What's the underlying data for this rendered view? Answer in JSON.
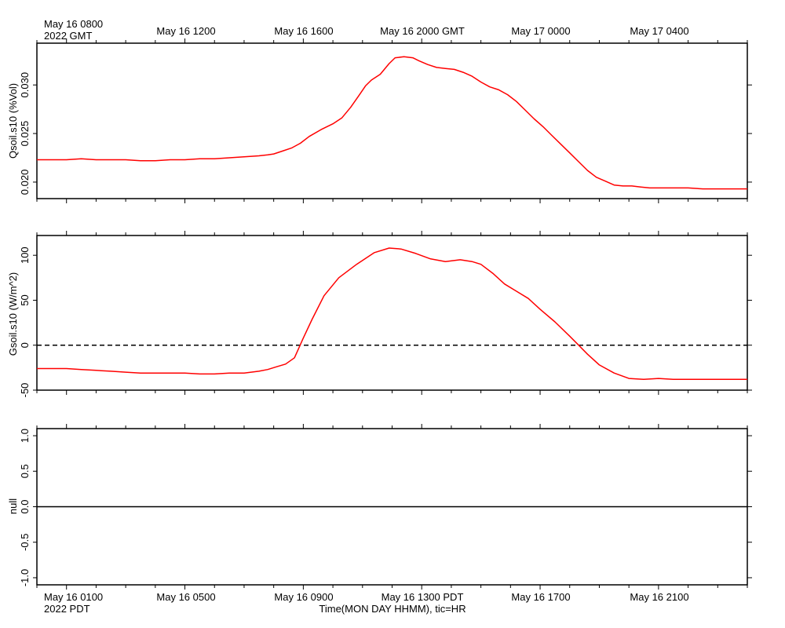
{
  "top_axis": {
    "first_label_line1": "May 16 0800",
    "first_label_line2": "2022 GMT",
    "labels": [
      "May 16 1200",
      "May 16 1600",
      "May 16 2000 GMT",
      "May 17 0000",
      "May 17 0400"
    ]
  },
  "bottom_axis": {
    "first_label_line1": "May 16 0100",
    "first_label_line2": "2022 PDT",
    "labels": [
      "May 16 0500",
      "May 16 0900",
      "May 16 1300 PDT",
      "May 16 1700",
      "May 16 2100"
    ],
    "xlabel": "Time(MON DAY HHMM), tic=HR"
  },
  "chart_data": [
    {
      "type": "line",
      "ylabel": "Qsoil.s10 (%Vol)",
      "ylim": [
        0.0183,
        0.0343
      ],
      "yticks": [
        "0.020",
        "0.025",
        "0.030"
      ],
      "ytick_values": [
        0.02,
        0.025,
        0.03
      ],
      "x_unit": "hours since May 16 0800 GMT",
      "xlim": [
        0,
        24
      ],
      "series": [
        {
          "color": "#ff0000",
          "x": [
            0,
            0.5,
            1,
            1.5,
            2,
            2.5,
            3,
            3.5,
            4,
            4.5,
            5,
            5.5,
            6,
            6.5,
            7,
            7.5,
            7.8,
            8,
            8.3,
            8.6,
            8.9,
            9.2,
            9.6,
            10,
            10.3,
            10.6,
            10.9,
            11.1,
            11.3,
            11.6,
            11.9,
            12.1,
            12.4,
            12.7,
            12.9,
            13.2,
            13.5,
            13.8,
            14.1,
            14.4,
            14.7,
            15,
            15.3,
            15.6,
            15.9,
            16.2,
            16.5,
            16.8,
            17.1,
            17.4,
            17.7,
            18,
            18.3,
            18.6,
            18.9,
            19.2,
            19.5,
            19.8,
            20.1,
            20.4,
            20.7,
            21,
            21.5,
            22,
            22.5,
            23,
            23.5,
            24
          ],
          "values": [
            0.0223,
            0.0223,
            0.0223,
            0.0224,
            0.0223,
            0.0223,
            0.0223,
            0.0222,
            0.0222,
            0.0223,
            0.0223,
            0.0224,
            0.0224,
            0.0225,
            0.0226,
            0.0227,
            0.0228,
            0.0229,
            0.0232,
            0.0235,
            0.024,
            0.0247,
            0.0254,
            0.026,
            0.0266,
            0.0277,
            0.029,
            0.0299,
            0.0305,
            0.0311,
            0.0322,
            0.0328,
            0.0329,
            0.0328,
            0.0325,
            0.0321,
            0.0318,
            0.0317,
            0.0316,
            0.0313,
            0.0309,
            0.0303,
            0.0298,
            0.0295,
            0.029,
            0.0283,
            0.0274,
            0.0265,
            0.0257,
            0.0248,
            0.0239,
            0.023,
            0.0221,
            0.0212,
            0.0205,
            0.0201,
            0.0197,
            0.0196,
            0.0196,
            0.0195,
            0.0194,
            0.0194,
            0.0194,
            0.0194,
            0.0193,
            0.0193,
            0.0193,
            0.0193
          ]
        }
      ]
    },
    {
      "type": "line",
      "ylabel": "Gsoil.s10 (W/m^2)",
      "ylim": [
        -50,
        122
      ],
      "yticks": [
        "-50",
        "0",
        "50",
        "100"
      ],
      "ytick_values": [
        -50,
        0,
        50,
        100
      ],
      "x_unit": "hours since May 16 0800 GMT",
      "xlim": [
        0,
        24
      ],
      "reference_line": {
        "y": 0,
        "style": "dashed",
        "color": "#000000"
      },
      "series": [
        {
          "color": "#ff0000",
          "x": [
            0,
            0.5,
            1,
            1.5,
            2,
            2.5,
            3,
            3.5,
            4,
            4.5,
            5,
            5.5,
            6,
            6.5,
            7,
            7.5,
            7.8,
            8.1,
            8.4,
            8.7,
            9,
            9.3,
            9.7,
            10.2,
            10.8,
            11.4,
            11.9,
            12.3,
            12.8,
            13.3,
            13.8,
            14.3,
            14.7,
            15,
            15.4,
            15.8,
            16.2,
            16.6,
            17,
            17.5,
            18,
            18.3,
            18.6,
            19,
            19.5,
            20,
            20.5,
            21,
            21.5,
            22,
            22.5,
            23,
            24
          ],
          "values": [
            -26,
            -26,
            -26,
            -27,
            -28,
            -29,
            -30,
            -31,
            -31,
            -31,
            -31,
            -32,
            -32,
            -31,
            -31,
            -29,
            -27,
            -24,
            -21,
            -14,
            8,
            29,
            55,
            75,
            90,
            103,
            108,
            107,
            102,
            96,
            93,
            95,
            93,
            90,
            80,
            68,
            60,
            52,
            40,
            26,
            10,
            0,
            -10,
            -22,
            -31,
            -37,
            -38,
            -37,
            -38,
            -38,
            -38,
            -38,
            -38
          ]
        }
      ]
    },
    {
      "type": "line",
      "ylabel": "null",
      "ylim": [
        -1.1,
        1.1
      ],
      "yticks": [
        "-1.0",
        "-0.5",
        "0.0",
        "0.5",
        "1.0"
      ],
      "ytick_values": [
        -1.0,
        -0.5,
        0.0,
        0.5,
        1.0
      ],
      "x_unit": "hours since May 16 0800 GMT",
      "xlim": [
        0,
        24
      ],
      "series": [
        {
          "color": "#000000",
          "x": [
            0,
            24
          ],
          "values": [
            0,
            0
          ]
        }
      ]
    }
  ]
}
